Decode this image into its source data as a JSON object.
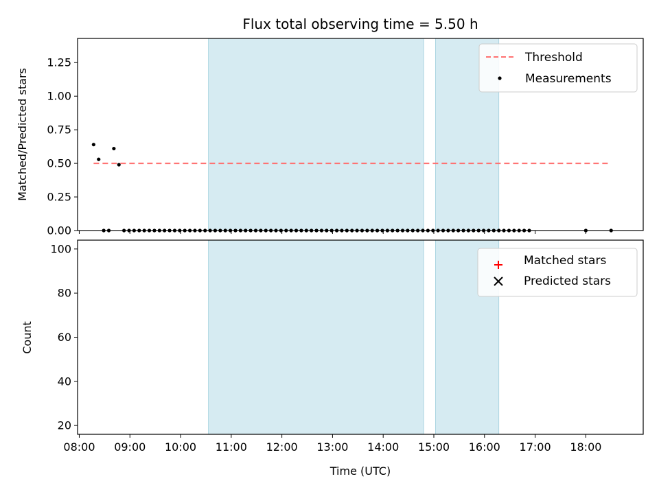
{
  "chart_data": [
    {
      "type": "scatter",
      "title": "Flux total observing time = 5.50 h",
      "ylabel": "Matched/Predicted stars",
      "ylim": [
        0,
        1.43
      ],
      "yticks": [
        0.0,
        0.25,
        0.5,
        0.75,
        1.0,
        1.25
      ],
      "ytick_labels": [
        "0.00",
        "0.25",
        "0.50",
        "0.75",
        "1.00",
        "1.25"
      ],
      "grid": false,
      "legend_position": "top-right",
      "shaded_intervals": [
        [
          "10:33",
          "14:48"
        ],
        [
          "15:02",
          "16:17"
        ]
      ],
      "series": [
        {
          "name": "Threshold",
          "style": "dashed-line",
          "color": "#ff7070",
          "x": [
            "08:17",
            "18:30"
          ],
          "y": [
            0.5,
            0.5
          ]
        },
        {
          "name": "Measurements",
          "style": "dot",
          "color": "#000000",
          "x": [
            "08:17",
            "08:23",
            "08:29",
            "08:35",
            "08:41",
            "08:47",
            "08:53",
            "08:59",
            "09:05",
            "09:11",
            "09:17",
            "09:23",
            "09:29",
            "09:35",
            "09:41",
            "09:47",
            "09:53",
            "09:59",
            "10:05",
            "10:11",
            "10:17",
            "10:23",
            "10:29",
            "10:35",
            "10:41",
            "10:47",
            "10:53",
            "10:59",
            "11:05",
            "11:11",
            "11:17",
            "11:23",
            "11:29",
            "11:35",
            "11:41",
            "11:47",
            "11:53",
            "11:59",
            "12:05",
            "12:11",
            "12:17",
            "12:23",
            "12:29",
            "12:35",
            "12:41",
            "12:47",
            "12:53",
            "12:59",
            "13:05",
            "13:11",
            "13:17",
            "13:23",
            "13:29",
            "13:35",
            "13:41",
            "13:47",
            "13:53",
            "13:59",
            "14:05",
            "14:11",
            "14:17",
            "14:23",
            "14:29",
            "14:35",
            "14:41",
            "14:47",
            "14:53",
            "14:59",
            "15:05",
            "15:11",
            "15:17",
            "15:23",
            "15:29",
            "15:35",
            "15:41",
            "15:47",
            "15:53",
            "15:59",
            "16:05",
            "16:11",
            "16:17",
            "16:23",
            "16:29",
            "16:35",
            "16:41",
            "16:47",
            "16:53",
            "18:00",
            "18:30"
          ],
          "y": [
            0.64,
            0.53,
            0.0,
            0.0,
            0.61,
            0.49,
            0.0,
            0.0,
            0.0,
            0.0,
            0.0,
            0.0,
            0.0,
            0.0,
            0.0,
            0.0,
            0.0,
            0.0,
            0.0,
            0.0,
            0.0,
            0.0,
            0.0,
            0.0,
            0.0,
            0.0,
            0.0,
            0.0,
            0.0,
            0.0,
            0.0,
            0.0,
            0.0,
            0.0,
            0.0,
            0.0,
            0.0,
            0.0,
            0.0,
            0.0,
            0.0,
            0.0,
            0.0,
            0.0,
            0.0,
            0.0,
            0.0,
            0.0,
            0.0,
            0.0,
            0.0,
            0.0,
            0.0,
            0.0,
            0.0,
            0.0,
            0.0,
            0.0,
            0.0,
            0.0,
            0.0,
            0.0,
            0.0,
            0.0,
            0.0,
            0.0,
            0.0,
            0.0,
            0.0,
            0.0,
            0.0,
            0.0,
            0.0,
            0.0,
            0.0,
            0.0,
            0.0,
            0.0,
            0.0,
            0.0,
            0.0,
            0.0,
            0.0,
            0.0,
            0.0,
            0.0,
            0.0,
            0.0,
            0.0
          ]
        }
      ]
    },
    {
      "type": "scatter",
      "xlabel": "Time (UTC)",
      "ylabel": "Count",
      "ylim": [
        16,
        104
      ],
      "yticks": [
        20,
        40,
        60,
        80,
        100
      ],
      "ytick_labels": [
        "20",
        "40",
        "60",
        "80",
        "100"
      ],
      "xlim": [
        "07:58",
        "19:08"
      ],
      "xticks": [
        "08:00",
        "09:00",
        "10:00",
        "11:00",
        "12:00",
        "13:00",
        "14:00",
        "15:00",
        "16:00",
        "17:00",
        "18:00"
      ],
      "grid": false,
      "legend_position": "top-right",
      "shaded_intervals": [
        [
          "10:33",
          "14:48"
        ],
        [
          "15:02",
          "16:17"
        ]
      ],
      "series": [
        {
          "name": "Matched stars",
          "style": "plus",
          "color": "#ff0000",
          "x": [],
          "y": []
        },
        {
          "name": "Predicted stars",
          "style": "x",
          "color": "#000000",
          "x": [],
          "y": []
        }
      ]
    }
  ]
}
